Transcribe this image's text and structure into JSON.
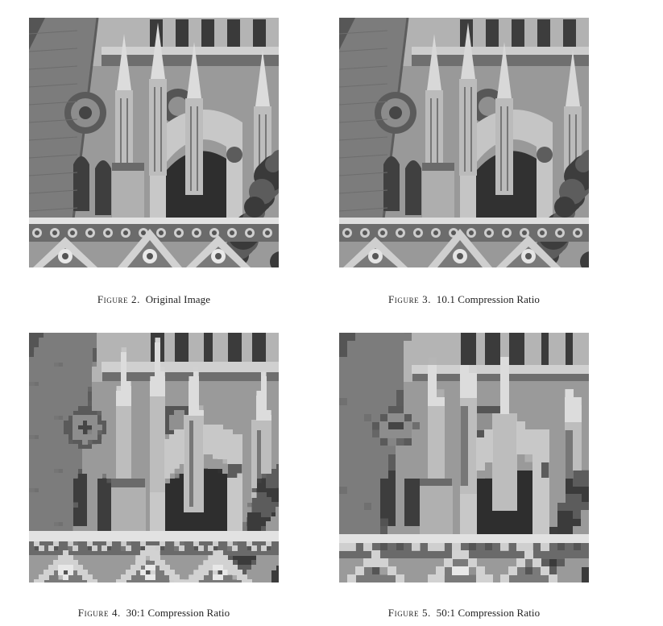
{
  "figures": [
    {
      "label": "Figure 2.",
      "text": "Original Image",
      "pixelation": 0
    },
    {
      "label": "Figure 3.",
      "text": "10.1 Compression Ratio",
      "pixelation": 0
    },
    {
      "label": "Figure 4.",
      "text": "30:1 Compression Ratio",
      "pixelation": 1
    },
    {
      "label": "Figure 5.",
      "text": "50:1 Compression Ratio",
      "pixelation": 2
    }
  ]
}
